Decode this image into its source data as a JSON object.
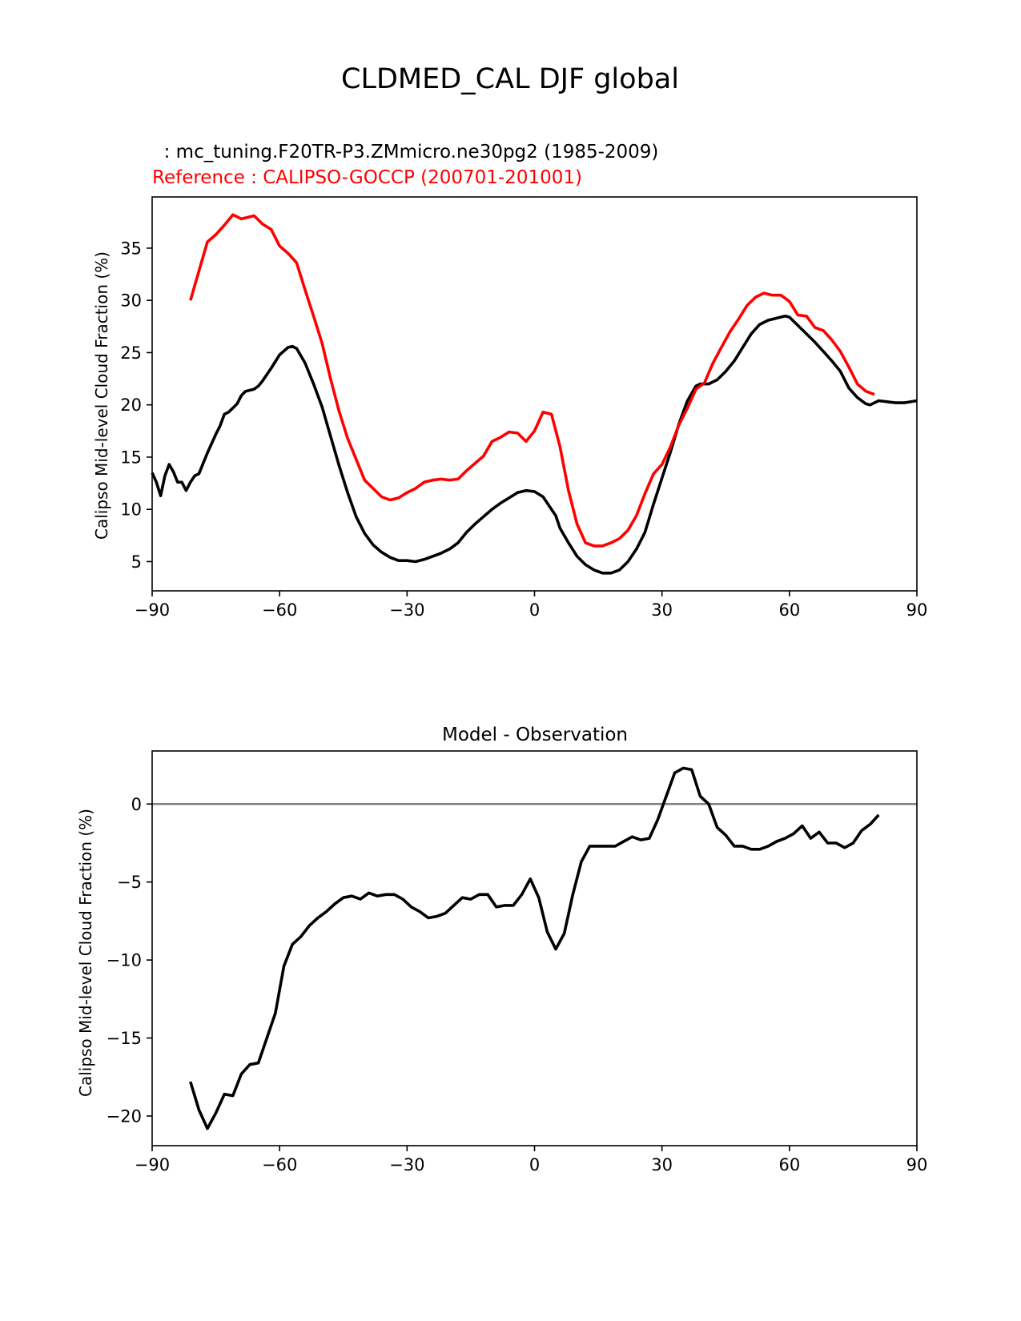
{
  "figure": {
    "title": "CLDMED_CAL DJF global"
  },
  "chart_data": [
    {
      "type": "line",
      "subtitle_model": "  : mc_tuning.F20TR-P3.ZMmicro.ne30pg2 (1985-2009)",
      "subtitle_reference": "Reference : CALIPSO-GOCCP (200701-201001)",
      "ylabel": "Calipso Mid-level Cloud Fraction (%)",
      "xlabel": "",
      "xlim": [
        -90,
        90
      ],
      "ylim": [
        2.2,
        39.9
      ],
      "xticks": [
        -90,
        -60,
        -30,
        0,
        30,
        60,
        90
      ],
      "xtick_labels": [
        "−90",
        "−60",
        "−30",
        "0",
        "30",
        "60",
        "90"
      ],
      "yticks": [
        5,
        10,
        15,
        20,
        25,
        30,
        35
      ],
      "ytick_labels": [
        "5",
        "10",
        "15",
        "20",
        "25",
        "30",
        "35"
      ],
      "grid": false,
      "series": [
        {
          "color": "#000000",
          "points": [
            [
              -90,
              13.5
            ],
            [
              -89,
              12.6
            ],
            [
              -88,
              11.3
            ],
            [
              -87,
              13.2
            ],
            [
              -86,
              14.3
            ],
            [
              -85,
              13.6
            ],
            [
              -84,
              12.6
            ],
            [
              -83,
              12.6
            ],
            [
              -82,
              11.8
            ],
            [
              -81,
              12.6
            ],
            [
              -80,
              13.2
            ],
            [
              -79,
              13.4
            ],
            [
              -77,
              15.4
            ],
            [
              -75,
              17.2
            ],
            [
              -74,
              18.0
            ],
            [
              -73,
              19.1
            ],
            [
              -72,
              19.3
            ],
            [
              -70,
              20.1
            ],
            [
              -69,
              20.9
            ],
            [
              -68,
              21.3
            ],
            [
              -66,
              21.5
            ],
            [
              -65,
              21.8
            ],
            [
              -64,
              22.3
            ],
            [
              -62,
              23.5
            ],
            [
              -60,
              24.8
            ],
            [
              -58,
              25.5
            ],
            [
              -57,
              25.6
            ],
            [
              -56,
              25.4
            ],
            [
              -54,
              24.0
            ],
            [
              -52,
              22.0
            ],
            [
              -50,
              19.8
            ],
            [
              -48,
              17.0
            ],
            [
              -46,
              14.2
            ],
            [
              -44,
              11.6
            ],
            [
              -42,
              9.3
            ],
            [
              -40,
              7.7
            ],
            [
              -38,
              6.6
            ],
            [
              -36,
              5.9
            ],
            [
              -34,
              5.4
            ],
            [
              -32,
              5.1
            ],
            [
              -30,
              5.1
            ],
            [
              -28,
              5.0
            ],
            [
              -26,
              5.2
            ],
            [
              -24,
              5.5
            ],
            [
              -22,
              5.8
            ],
            [
              -20,
              6.2
            ],
            [
              -18,
              6.8
            ],
            [
              -16,
              7.8
            ],
            [
              -14,
              8.6
            ],
            [
              -12,
              9.3
            ],
            [
              -10,
              10.0
            ],
            [
              -8,
              10.6
            ],
            [
              -6,
              11.1
            ],
            [
              -4,
              11.6
            ],
            [
              -2,
              11.8
            ],
            [
              0,
              11.7
            ],
            [
              2,
              11.2
            ],
            [
              4,
              10.0
            ],
            [
              5,
              9.4
            ],
            [
              6,
              8.2
            ],
            [
              8,
              6.8
            ],
            [
              10,
              5.5
            ],
            [
              12,
              4.7
            ],
            [
              14,
              4.2
            ],
            [
              16,
              3.9
            ],
            [
              18,
              3.9
            ],
            [
              20,
              4.2
            ],
            [
              22,
              5.0
            ],
            [
              24,
              6.2
            ],
            [
              26,
              7.8
            ],
            [
              28,
              10.5
            ],
            [
              30,
              13.0
            ],
            [
              32,
              15.5
            ],
            [
              34,
              18.2
            ],
            [
              36,
              20.4
            ],
            [
              38,
              21.8
            ],
            [
              39,
              22.0
            ],
            [
              41,
              22.0
            ],
            [
              43,
              22.4
            ],
            [
              45,
              23.2
            ],
            [
              47,
              24.2
            ],
            [
              49,
              25.5
            ],
            [
              51,
              26.8
            ],
            [
              53,
              27.7
            ],
            [
              55,
              28.1
            ],
            [
              57,
              28.3
            ],
            [
              59,
              28.5
            ],
            [
              60,
              28.4
            ],
            [
              62,
              27.6
            ],
            [
              64,
              26.8
            ],
            [
              66,
              26.0
            ],
            [
              68,
              25.1
            ],
            [
              70,
              24.2
            ],
            [
              72,
              23.2
            ],
            [
              74,
              21.6
            ],
            [
              76,
              20.7
            ],
            [
              78,
              20.1
            ],
            [
              79,
              20.0
            ],
            [
              81,
              20.4
            ],
            [
              83,
              20.3
            ],
            [
              85,
              20.2
            ],
            [
              87,
              20.2
            ],
            [
              90,
              20.4
            ]
          ]
        },
        {
          "color": "#ff0000",
          "points": [
            [
              -81,
              30.0
            ],
            [
              -77,
              35.6
            ],
            [
              -75,
              36.3
            ],
            [
              -73,
              37.2
            ],
            [
              -71,
              38.2
            ],
            [
              -69,
              37.8
            ],
            [
              -66,
              38.1
            ],
            [
              -64,
              37.3
            ],
            [
              -62,
              36.8
            ],
            [
              -60,
              35.2
            ],
            [
              -58,
              34.5
            ],
            [
              -56,
              33.6
            ],
            [
              -54,
              31.0
            ],
            [
              -52,
              28.5
            ],
            [
              -50,
              25.9
            ],
            [
              -48,
              22.5
            ],
            [
              -46,
              19.4
            ],
            [
              -44,
              16.8
            ],
            [
              -42,
              14.8
            ],
            [
              -40,
              12.8
            ],
            [
              -38,
              12.0
            ],
            [
              -36,
              11.2
            ],
            [
              -34,
              10.9
            ],
            [
              -32,
              11.1
            ],
            [
              -30,
              11.6
            ],
            [
              -28,
              12.0
            ],
            [
              -26,
              12.6
            ],
            [
              -24,
              12.8
            ],
            [
              -22,
              12.9
            ],
            [
              -20,
              12.8
            ],
            [
              -18,
              12.9
            ],
            [
              -16,
              13.7
            ],
            [
              -14,
              14.4
            ],
            [
              -12,
              15.1
            ],
            [
              -10,
              16.5
            ],
            [
              -8,
              16.9
            ],
            [
              -6,
              17.4
            ],
            [
              -4,
              17.3
            ],
            [
              -2,
              16.5
            ],
            [
              0,
              17.5
            ],
            [
              2,
              19.3
            ],
            [
              4,
              19.1
            ],
            [
              6,
              16.0
            ],
            [
              8,
              11.8
            ],
            [
              10,
              8.6
            ],
            [
              12,
              6.8
            ],
            [
              14,
              6.5
            ],
            [
              16,
              6.5
            ],
            [
              18,
              6.8
            ],
            [
              20,
              7.2
            ],
            [
              22,
              8.0
            ],
            [
              24,
              9.4
            ],
            [
              26,
              11.5
            ],
            [
              28,
              13.4
            ],
            [
              30,
              14.3
            ],
            [
              32,
              16.0
            ],
            [
              34,
              18.1
            ],
            [
              36,
              19.7
            ],
            [
              38,
              21.5
            ],
            [
              40,
              22.1
            ],
            [
              42,
              24.0
            ],
            [
              44,
              25.5
            ],
            [
              46,
              27.0
            ],
            [
              48,
              28.2
            ],
            [
              50,
              29.5
            ],
            [
              52,
              30.3
            ],
            [
              54,
              30.7
            ],
            [
              56,
              30.5
            ],
            [
              58,
              30.5
            ],
            [
              60,
              29.9
            ],
            [
              62,
              28.6
            ],
            [
              64,
              28.5
            ],
            [
              66,
              27.4
            ],
            [
              68,
              27.1
            ],
            [
              70,
              26.2
            ],
            [
              72,
              25.1
            ],
            [
              74,
              23.6
            ],
            [
              76,
              22.0
            ],
            [
              78,
              21.3
            ],
            [
              80,
              21.0
            ]
          ]
        }
      ]
    },
    {
      "type": "line",
      "title": "Model - Observation",
      "ylabel": "Calipso Mid-level Cloud Fraction (%)",
      "xlabel": "",
      "xlim": [
        -90,
        90
      ],
      "ylim": [
        -21.9,
        3.4
      ],
      "xticks": [
        -90,
        -60,
        -30,
        0,
        30,
        60,
        90
      ],
      "xtick_labels": [
        "−90",
        "−60",
        "−30",
        "0",
        "30",
        "60",
        "90"
      ],
      "yticks": [
        -20,
        -15,
        -10,
        -5,
        0
      ],
      "ytick_labels": [
        "−20",
        "−15",
        "−10",
        "−5",
        "0"
      ],
      "grid": false,
      "zero_line_color": "#808080",
      "series": [
        {
          "color": "#000000",
          "points": [
            [
              -81,
              -17.8
            ],
            [
              -79,
              -19.6
            ],
            [
              -77,
              -20.8
            ],
            [
              -75,
              -19.8
            ],
            [
              -73,
              -18.6
            ],
            [
              -71,
              -18.7
            ],
            [
              -69,
              -17.3
            ],
            [
              -67,
              -16.7
            ],
            [
              -65,
              -16.6
            ],
            [
              -63,
              -15.0
            ],
            [
              -61,
              -13.4
            ],
            [
              -59,
              -10.4
            ],
            [
              -57,
              -9.0
            ],
            [
              -55,
              -8.5
            ],
            [
              -53,
              -7.8
            ],
            [
              -51,
              -7.3
            ],
            [
              -49,
              -6.9
            ],
            [
              -47,
              -6.4
            ],
            [
              -45,
              -6.0
            ],
            [
              -43,
              -5.9
            ],
            [
              -41,
              -6.1
            ],
            [
              -39,
              -5.7
            ],
            [
              -37,
              -5.9
            ],
            [
              -35,
              -5.8
            ],
            [
              -33,
              -5.8
            ],
            [
              -31,
              -6.1
            ],
            [
              -29,
              -6.6
            ],
            [
              -27,
              -6.9
            ],
            [
              -25,
              -7.3
            ],
            [
              -23,
              -7.2
            ],
            [
              -21,
              -7.0
            ],
            [
              -19,
              -6.5
            ],
            [
              -17,
              -6.0
            ],
            [
              -15,
              -6.1
            ],
            [
              -13,
              -5.8
            ],
            [
              -11,
              -5.8
            ],
            [
              -9,
              -6.6
            ],
            [
              -7,
              -6.5
            ],
            [
              -5,
              -6.5
            ],
            [
              -3,
              -5.8
            ],
            [
              -1,
              -4.8
            ],
            [
              1,
              -6.0
            ],
            [
              3,
              -8.2
            ],
            [
              5,
              -9.3
            ],
            [
              7,
              -8.3
            ],
            [
              9,
              -5.8
            ],
            [
              11,
              -3.7
            ],
            [
              13,
              -2.7
            ],
            [
              15,
              -2.7
            ],
            [
              17,
              -2.7
            ],
            [
              19,
              -2.7
            ],
            [
              21,
              -2.4
            ],
            [
              23,
              -2.1
            ],
            [
              25,
              -2.3
            ],
            [
              27,
              -2.2
            ],
            [
              29,
              -1.0
            ],
            [
              31,
              0.5
            ],
            [
              33,
              2.0
            ],
            [
              35,
              2.3
            ],
            [
              37,
              2.2
            ],
            [
              39,
              0.5
            ],
            [
              41,
              0.0
            ],
            [
              43,
              -1.5
            ],
            [
              45,
              -2.0
            ],
            [
              47,
              -2.7
            ],
            [
              49,
              -2.7
            ],
            [
              51,
              -2.9
            ],
            [
              53,
              -2.9
            ],
            [
              55,
              -2.7
            ],
            [
              57,
              -2.4
            ],
            [
              59,
              -2.2
            ],
            [
              61,
              -1.9
            ],
            [
              63,
              -1.4
            ],
            [
              65,
              -2.2
            ],
            [
              67,
              -1.8
            ],
            [
              69,
              -2.5
            ],
            [
              71,
              -2.5
            ],
            [
              73,
              -2.8
            ],
            [
              75,
              -2.5
            ],
            [
              77,
              -1.7
            ],
            [
              79,
              -1.3
            ],
            [
              81,
              -0.7
            ]
          ]
        }
      ]
    }
  ]
}
